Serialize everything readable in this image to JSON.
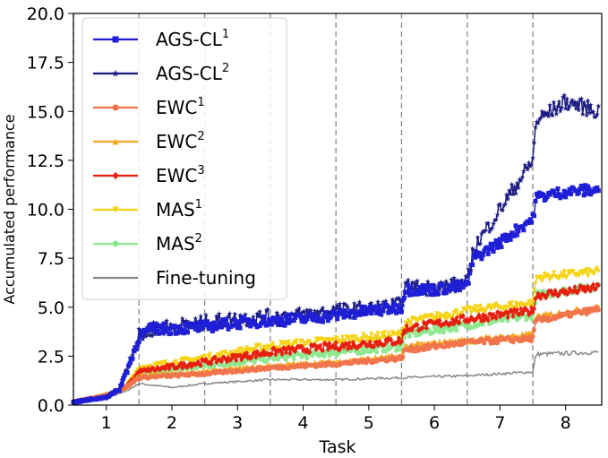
{
  "chart_data": {
    "type": "line",
    "xlabel": "Task",
    "ylabel": "Accumulated performance",
    "xlim": [
      0.5,
      8.55
    ],
    "ylim": [
      0.0,
      20.0
    ],
    "xticks": [
      "1",
      "2",
      "3",
      "4",
      "5",
      "6",
      "7",
      "8"
    ],
    "yticks": [
      "0.0",
      "2.5",
      "5.0",
      "7.5",
      "10.0",
      "12.5",
      "15.0",
      "17.5",
      "20.0"
    ],
    "task_boundaries": [
      0.5,
      1.5,
      2.5,
      3.5,
      4.5,
      5.5,
      6.5,
      7.5
    ],
    "legend_position": "upper-left",
    "grid": false,
    "series": [
      {
        "name": "AGS-CL",
        "sup": "1",
        "color": "#1f1fd6",
        "marker": "square",
        "noise": 0.28,
        "points": [
          [
            0.5,
            0.15
          ],
          [
            1.0,
            0.4
          ],
          [
            1.2,
            0.8
          ],
          [
            1.4,
            2.5
          ],
          [
            1.5,
            3.5
          ],
          [
            1.7,
            3.9
          ],
          [
            2.0,
            3.9
          ],
          [
            2.5,
            4.0
          ],
          [
            3.0,
            4.2
          ],
          [
            3.5,
            4.3
          ],
          [
            4.0,
            4.4
          ],
          [
            4.5,
            4.6
          ],
          [
            5.0,
            4.8
          ],
          [
            5.5,
            5.0
          ],
          [
            5.55,
            5.9
          ],
          [
            6.0,
            5.9
          ],
          [
            6.5,
            6.1
          ],
          [
            6.6,
            7.5
          ],
          [
            7.0,
            8.3
          ],
          [
            7.4,
            9.3
          ],
          [
            7.5,
            9.5
          ],
          [
            7.55,
            10.6
          ],
          [
            8.0,
            10.9
          ],
          [
            8.5,
            11.0
          ]
        ]
      },
      {
        "name": "AGS-CL",
        "sup": "2",
        "color": "#1a1a80",
        "marker": "star",
        "noise": 0.4,
        "points": [
          [
            0.5,
            0.15
          ],
          [
            1.0,
            0.4
          ],
          [
            1.2,
            0.8
          ],
          [
            1.4,
            2.7
          ],
          [
            1.5,
            3.5
          ],
          [
            1.7,
            3.9
          ],
          [
            2.0,
            4.0
          ],
          [
            2.5,
            4.2
          ],
          [
            3.0,
            4.4
          ],
          [
            3.5,
            4.5
          ],
          [
            4.0,
            4.6
          ],
          [
            4.5,
            4.8
          ],
          [
            5.0,
            4.9
          ],
          [
            5.5,
            5.1
          ],
          [
            5.55,
            6.0
          ],
          [
            6.0,
            6.0
          ],
          [
            6.5,
            6.2
          ],
          [
            6.6,
            8.0
          ],
          [
            7.0,
            10.0
          ],
          [
            7.4,
            12.0
          ],
          [
            7.5,
            12.5
          ],
          [
            7.55,
            14.5
          ],
          [
            8.0,
            15.5
          ],
          [
            8.5,
            15.0
          ]
        ]
      },
      {
        "name": "EWC",
        "sup": "1",
        "color": "#f0744c",
        "marker": "circle",
        "noise": 0.14,
        "points": [
          [
            0.5,
            0.15
          ],
          [
            1.0,
            0.5
          ],
          [
            1.3,
            0.9
          ],
          [
            1.5,
            1.4
          ],
          [
            2.5,
            1.6
          ],
          [
            3.5,
            1.9
          ],
          [
            4.5,
            2.1
          ],
          [
            5.5,
            2.4
          ],
          [
            5.55,
            2.8
          ],
          [
            6.5,
            3.2
          ],
          [
            7.5,
            3.4
          ],
          [
            7.55,
            4.3
          ],
          [
            8.5,
            4.9
          ]
        ]
      },
      {
        "name": "EWC",
        "sup": "2",
        "color": "#f5a623",
        "marker": "triangle",
        "noise": 0.14,
        "points": [
          [
            0.5,
            0.15
          ],
          [
            1.0,
            0.5
          ],
          [
            1.3,
            0.9
          ],
          [
            1.5,
            1.5
          ],
          [
            2.5,
            1.7
          ],
          [
            3.5,
            2.0
          ],
          [
            4.5,
            2.2
          ],
          [
            5.5,
            2.5
          ],
          [
            5.55,
            3.0
          ],
          [
            6.5,
            3.3
          ],
          [
            7.5,
            3.6
          ],
          [
            7.55,
            4.5
          ],
          [
            8.5,
            5.0
          ]
        ]
      },
      {
        "name": "EWC",
        "sup": "3",
        "color": "#e62010",
        "marker": "diamond",
        "noise": 0.2,
        "points": [
          [
            0.5,
            0.15
          ],
          [
            1.0,
            0.5
          ],
          [
            1.3,
            0.9
          ],
          [
            1.5,
            1.7
          ],
          [
            2.5,
            2.2
          ],
          [
            3.5,
            2.7
          ],
          [
            4.5,
            3.0
          ],
          [
            5.5,
            3.3
          ],
          [
            5.55,
            3.9
          ],
          [
            6.5,
            4.4
          ],
          [
            7.5,
            4.8
          ],
          [
            7.55,
            5.6
          ],
          [
            8.5,
            6.0
          ]
        ]
      },
      {
        "name": "MAS",
        "sup": "1",
        "color": "#f5d313",
        "marker": "tri-down",
        "noise": 0.2,
        "points": [
          [
            0.5,
            0.15
          ],
          [
            1.0,
            0.5
          ],
          [
            1.3,
            0.9
          ],
          [
            1.5,
            1.9
          ],
          [
            2.5,
            2.4
          ],
          [
            3.5,
            3.0
          ],
          [
            4.5,
            3.3
          ],
          [
            5.5,
            3.6
          ],
          [
            5.55,
            4.2
          ],
          [
            6.5,
            4.8
          ],
          [
            7.5,
            5.2
          ],
          [
            7.55,
            6.5
          ],
          [
            8.5,
            6.8
          ]
        ]
      },
      {
        "name": "MAS",
        "sup": "2",
        "color": "#90e890",
        "marker": "circle",
        "noise": 0.2,
        "points": [
          [
            0.5,
            0.15
          ],
          [
            1.0,
            0.5
          ],
          [
            1.3,
            0.9
          ],
          [
            1.5,
            1.6
          ],
          [
            2.5,
            2.0
          ],
          [
            3.5,
            2.4
          ],
          [
            4.5,
            2.7
          ],
          [
            5.5,
            3.0
          ],
          [
            5.55,
            3.6
          ],
          [
            6.5,
            4.1
          ],
          [
            7.5,
            4.6
          ],
          [
            7.55,
            5.6
          ],
          [
            8.5,
            6.1
          ]
        ]
      },
      {
        "name": "Fine-tuning",
        "sup": "",
        "color": "#888888",
        "marker": "none",
        "noise": 0.12,
        "points": [
          [
            0.5,
            0.15
          ],
          [
            1.0,
            0.4
          ],
          [
            1.3,
            0.7
          ],
          [
            1.5,
            1.1
          ],
          [
            2.0,
            0.9
          ],
          [
            2.5,
            1.1
          ],
          [
            3.0,
            1.2
          ],
          [
            3.5,
            1.3
          ],
          [
            4.5,
            1.3
          ],
          [
            5.5,
            1.4
          ],
          [
            6.5,
            1.5
          ],
          [
            7.5,
            1.7
          ],
          [
            7.55,
            2.6
          ],
          [
            8.5,
            2.7
          ]
        ]
      }
    ]
  }
}
